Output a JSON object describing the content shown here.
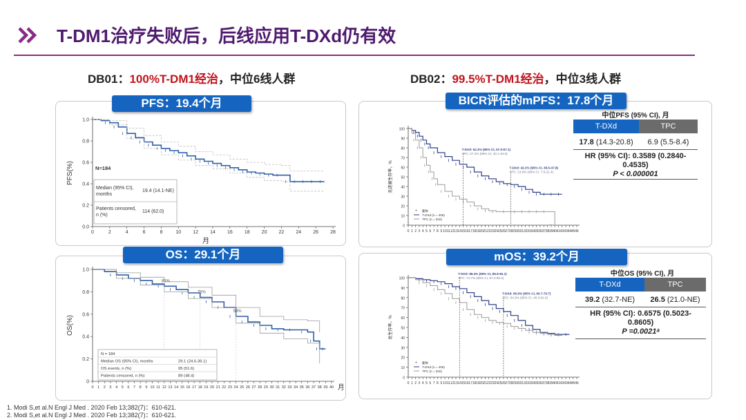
{
  "title": "T-DM1治疗失败后，后线应用T-DXd仍有效",
  "db01": {
    "label": "DB01：",
    "highlight": "100%T-DM1经治",
    "rest": "，中位6线人群"
  },
  "db02": {
    "label": "DB02：",
    "highlight": "99.5%T-DM1经治",
    "rest": "，中位3线人群"
  },
  "pills": {
    "pfs": "PFS：19.4个月",
    "os": "OS：29.1个月",
    "bicr": "BICR评估的mPFS：17.8个月",
    "mos": "mOS：39.2个月"
  },
  "colors": {
    "title": "#4e1a6e",
    "accent": "#c0141c",
    "pill": "#1565c0",
    "line": "#2f5fa8",
    "gray": "#9a9a9a"
  },
  "table_pfs": {
    "header": "中位PFS (95% CI), 月",
    "col1": "T-DXd",
    "col2": "TPC",
    "v1_bold": "17.8",
    "v1_rest": " (14.3-20.8)",
    "v2": "6.9 (5.5-8.4)",
    "hr1": "HR (95% CI): 0.3589 (0.2840-",
    "hr2": "0.4535)",
    "p": "P < 0.000001"
  },
  "table_os": {
    "header": "中位OS (95% CI), 月",
    "col1": "T-DXd",
    "col2": "TPC",
    "v1_bold": "39.2",
    "v1_rest": " (32.7-NE)",
    "v2_bold": "26.5",
    "v2_rest": " (21.0-NE)",
    "hr1": "HR (95% CI): 0.6575 (0.5023-",
    "hr2": "0.8605)",
    "p": "P =0.0021ᵃ"
  },
  "refs": [
    "1.    Modi S,et al.N Engl J Med . 2020 Feb 13;382(7)：610-621.",
    "2.    Modi S,et al.N Engl J Med . 2020 Feb 13;382(7)：610-621."
  ],
  "chart_data": [
    {
      "id": "db01-pfs",
      "type": "line",
      "ylabel": "PFS(%)",
      "xlabel": "月",
      "xlim": [
        0,
        28
      ],
      "ylim": [
        0,
        1.0
      ],
      "xticks": [
        0,
        2,
        4,
        6,
        8,
        10,
        12,
        14,
        16,
        18,
        20,
        22,
        24,
        26,
        28
      ],
      "yticks": [
        "0.0",
        "0.2",
        "0.4",
        "0.6",
        "0.8",
        "1.0"
      ],
      "n_label": "N=184",
      "stats": [
        {
          "label": "Median (95% CI),",
          "label2": "months",
          "value": "19.4 (14.1-NE)"
        },
        {
          "label": "Patients censored,",
          "label2": "n (%)",
          "value": "114 (62.0)"
        }
      ],
      "series": [
        {
          "x": [
            0,
            1,
            2,
            3,
            4,
            5,
            6,
            7,
            8,
            9,
            10,
            11,
            12,
            13,
            14,
            15,
            16,
            17,
            18,
            19,
            20,
            21,
            22,
            23,
            24,
            25,
            26,
            27
          ],
          "y": [
            1.0,
            0.99,
            0.97,
            0.93,
            0.87,
            0.83,
            0.79,
            0.76,
            0.73,
            0.71,
            0.69,
            0.66,
            0.63,
            0.61,
            0.59,
            0.57,
            0.55,
            0.53,
            0.51,
            0.5,
            0.49,
            0.48,
            0.48,
            0.42,
            0.42,
            0.42,
            0.42,
            0.42
          ]
        },
        {
          "x": [
            0,
            2,
            4,
            6,
            8,
            10,
            12,
            14,
            16,
            18,
            20,
            22,
            23,
            27
          ],
          "y": [
            1.0,
            0.99,
            0.92,
            0.85,
            0.79,
            0.75,
            0.7,
            0.67,
            0.63,
            0.6,
            0.58,
            0.57,
            0.52,
            0.52
          ]
        },
        {
          "x": [
            0,
            2,
            4,
            6,
            8,
            10,
            12,
            14,
            16,
            18,
            20,
            22,
            23,
            27
          ],
          "y": [
            1.0,
            0.95,
            0.82,
            0.73,
            0.67,
            0.62,
            0.57,
            0.54,
            0.5,
            0.46,
            0.43,
            0.42,
            0.33,
            0.33
          ]
        }
      ]
    },
    {
      "id": "db01-os",
      "type": "line",
      "ylabel": "OS(%)",
      "xlabel": "月",
      "xlim": [
        0,
        40
      ],
      "ylim": [
        0,
        1.0
      ],
      "xticks": [
        0,
        1,
        2,
        3,
        4,
        5,
        6,
        7,
        8,
        9,
        10,
        11,
        12,
        13,
        14,
        15,
        16,
        17,
        18,
        19,
        20,
        21,
        22,
        23,
        24,
        25,
        26,
        27,
        28,
        29,
        30,
        31,
        32,
        33,
        34,
        35,
        36,
        37,
        38,
        39,
        40
      ],
      "yticks": [
        "0",
        "0.2",
        "0.4",
        "0.6",
        "0.8",
        "1.0"
      ],
      "annotations": [
        {
          "x": 12,
          "y": 0.85,
          "text": "85%"
        },
        {
          "x": 18,
          "y": 0.75,
          "text": "75%"
        },
        {
          "x": 24,
          "y": 0.58,
          "text": "58%"
        }
      ],
      "stats": [
        {
          "label": "N = 184",
          "value": ""
        },
        {
          "label": "Median OS (95% CI), months",
          "value": "29.1 (24.6-36.1)"
        },
        {
          "label": "OS events, n (%)",
          "value": "95 (51.6)"
        },
        {
          "label": "Patients censored, n (%)",
          "value": "89 (48.4)"
        }
      ],
      "series": [
        {
          "x": [
            0,
            2,
            4,
            6,
            8,
            10,
            12,
            14,
            16,
            18,
            20,
            22,
            24,
            26,
            28,
            30,
            32,
            34,
            36,
            37,
            38,
            39
          ],
          "y": [
            1.0,
            0.98,
            0.95,
            0.92,
            0.9,
            0.87,
            0.85,
            0.82,
            0.79,
            0.75,
            0.71,
            0.66,
            0.58,
            0.53,
            0.5,
            0.47,
            0.46,
            0.46,
            0.44,
            0.36,
            0.29,
            0.29
          ]
        },
        {
          "x": [
            0,
            4,
            8,
            12,
            16,
            20,
            24,
            28,
            32,
            36,
            38
          ],
          "y": [
            1.0,
            0.97,
            0.93,
            0.89,
            0.84,
            0.77,
            0.66,
            0.58,
            0.55,
            0.54,
            0.44
          ]
        },
        {
          "x": [
            0,
            4,
            8,
            12,
            16,
            20,
            24,
            28,
            32,
            36,
            38
          ],
          "y": [
            1.0,
            0.92,
            0.86,
            0.8,
            0.74,
            0.66,
            0.52,
            0.43,
            0.38,
            0.34,
            0.16
          ]
        }
      ]
    },
    {
      "id": "db02-pfs",
      "type": "line",
      "ylabel": "无进展生存率，%",
      "xlim": [
        0,
        46
      ],
      "ylim": [
        0,
        100
      ],
      "xticks": [
        0,
        1,
        2,
        3,
        4,
        5,
        6,
        7,
        8,
        9,
        10,
        11,
        12,
        13,
        14,
        15,
        16,
        17,
        18,
        19,
        20,
        21,
        22,
        23,
        24,
        25,
        26,
        27,
        28,
        29,
        30,
        31,
        32,
        33,
        34,
        35,
        36,
        37,
        38,
        39,
        40,
        41,
        42,
        43,
        44,
        45,
        46
      ],
      "yticks": [
        0,
        10,
        20,
        30,
        40,
        50,
        60,
        70,
        80,
        90,
        100
      ],
      "annotations": [
        {
          "x": 15,
          "y": 70,
          "text": "T-DXd: 62.3% (95% CI, 57.0-67.1)",
          "text2": "TPC: 27.2% (95% CI, 20.1-34.9)"
        },
        {
          "x": 28,
          "y": 51,
          "text": "T-DXd: 42.2% (95% CI, 36.5-47.8)",
          "text2": "TPC: 13.8% (95% CI, 7.9-21.4)"
        }
      ],
      "legend": [
        "删失",
        "T-DXd (n = 406)",
        "TPC (n = 202)"
      ],
      "series": [
        {
          "name": "T-DXd (n = 406)",
          "x": [
            0,
            1,
            2,
            3,
            4,
            5,
            6,
            8,
            10,
            12,
            14,
            16,
            18,
            20,
            22,
            24,
            26,
            28,
            30,
            32,
            34,
            36,
            38,
            40,
            42
          ],
          "y": [
            100,
            98,
            96,
            92,
            88,
            84,
            80,
            75,
            71,
            67,
            63,
            60,
            55,
            51,
            48,
            45,
            43,
            42,
            40,
            37,
            34,
            32,
            32,
            32,
            32
          ]
        },
        {
          "name": "TPC (n = 202)",
          "x": [
            0,
            1,
            2,
            3,
            4,
            5,
            6,
            7,
            8,
            10,
            12,
            14,
            16,
            18,
            20,
            22,
            24,
            28,
            30,
            32,
            34,
            36,
            38,
            40
          ],
          "y": [
            100,
            95,
            88,
            80,
            70,
            62,
            55,
            48,
            42,
            35,
            30,
            27,
            24,
            20,
            17,
            15,
            14,
            14,
            14,
            14,
            14,
            14,
            14,
            0
          ]
        }
      ]
    },
    {
      "id": "db02-os",
      "type": "line",
      "ylabel": "总生存率，%",
      "xlim": [
        0,
        46
      ],
      "ylim": [
        0,
        100
      ],
      "xticks": [
        0,
        1,
        2,
        3,
        4,
        5,
        6,
        7,
        8,
        9,
        10,
        11,
        12,
        13,
        14,
        15,
        16,
        17,
        18,
        19,
        20,
        21,
        22,
        23,
        24,
        25,
        26,
        27,
        28,
        29,
        30,
        31,
        32,
        33,
        34,
        35,
        36,
        37,
        38,
        39,
        40,
        41,
        42,
        43,
        44,
        45,
        46
      ],
      "yticks": [
        0,
        10,
        20,
        30,
        40,
        50,
        60,
        70,
        80,
        90,
        100
      ],
      "annotations": [
        {
          "x": 14,
          "y": 96,
          "text": "T-DXd: 89.4% (95% CI, 85.9-92.1)",
          "text2": "TPC: 74.7% (95% CI, 67.4-80.4)"
        },
        {
          "x": 26,
          "y": 76,
          "text": "T-DXd: 65.9% (95% CI, 60.7-70.7)",
          "text2": "TPC: 54.3% (95% CI, 46.3-61.6)"
        }
      ],
      "legend": [
        "删失",
        "T-DXd (n = 406)",
        "TPC (n = 202)"
      ],
      "series": [
        {
          "name": "T-DXd (n = 406)",
          "x": [
            0,
            2,
            4,
            6,
            8,
            10,
            12,
            14,
            16,
            18,
            20,
            22,
            24,
            26,
            28,
            30,
            32,
            34,
            36,
            38,
            40,
            42,
            44
          ],
          "y": [
            100,
            99,
            98,
            97,
            96,
            94,
            91,
            89,
            85,
            81,
            77,
            73,
            69,
            66,
            62,
            57,
            52,
            48,
            45,
            44,
            43,
            43,
            43
          ]
        },
        {
          "name": "TPC (n = 202)",
          "x": [
            0,
            2,
            4,
            6,
            8,
            10,
            12,
            14,
            16,
            18,
            20,
            22,
            24,
            26,
            28,
            30,
            32,
            34,
            36,
            38,
            40,
            42
          ],
          "y": [
            100,
            98,
            95,
            92,
            88,
            84,
            79,
            75,
            68,
            63,
            60,
            57,
            55,
            54,
            51,
            49,
            47,
            45,
            44,
            43,
            42,
            42
          ]
        }
      ]
    }
  ]
}
